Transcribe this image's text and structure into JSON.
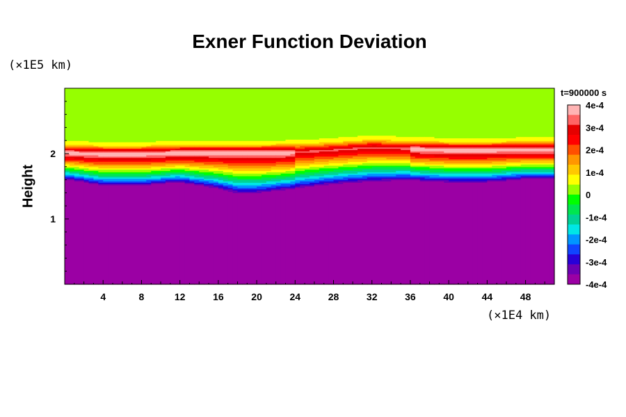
{
  "chart_data": {
    "type": "heatmap",
    "title": "Exner Function Deviation",
    "ylabel": "Height",
    "y_unit": "(×1E5 km)",
    "x_unit": "(×1E4 km)",
    "time_label": "t=900000 s",
    "xlim": [
      0,
      51
    ],
    "ylim": [
      0,
      3
    ],
    "x_ticks": [
      4,
      8,
      12,
      16,
      20,
      24,
      28,
      32,
      36,
      40,
      44,
      48
    ],
    "y_ticks": [
      1,
      2
    ],
    "colorbar": {
      "ticks": [
        "4e-4",
        "3e-4",
        "2e-4",
        "1e-4",
        "0",
        "-1e-4",
        "-2e-4",
        "-3e-4",
        "-4e-4"
      ],
      "range": [
        -0.0004,
        0.0004
      ],
      "colors": [
        "#9b00a4",
        "#6c00b4",
        "#2800d8",
        "#1044ff",
        "#0096ff",
        "#00e6e6",
        "#00d296",
        "#00e650",
        "#00ff00",
        "#96ff00",
        "#ffff00",
        "#ffc800",
        "#ff9600",
        "#ff5000",
        "#ff0000",
        "#e60000",
        "#ff6464",
        "#ffb4b4"
      ]
    },
    "field_profile": {
      "x": [
        0,
        4,
        8,
        12,
        16,
        18,
        20,
        24,
        28,
        32,
        36,
        40,
        44,
        48,
        51
      ],
      "low_boundary_height": [
        1.6,
        1.5,
        1.5,
        1.55,
        1.45,
        1.38,
        1.38,
        1.45,
        1.52,
        1.56,
        1.58,
        1.55,
        1.55,
        1.6,
        1.6
      ],
      "max_height": [
        2.02,
        2.0,
        2.0,
        2.02,
        2.02,
        2.02,
        2.02,
        2.03,
        2.06,
        2.1,
        2.08,
        2.06,
        2.06,
        2.07,
        2.07
      ]
    }
  }
}
